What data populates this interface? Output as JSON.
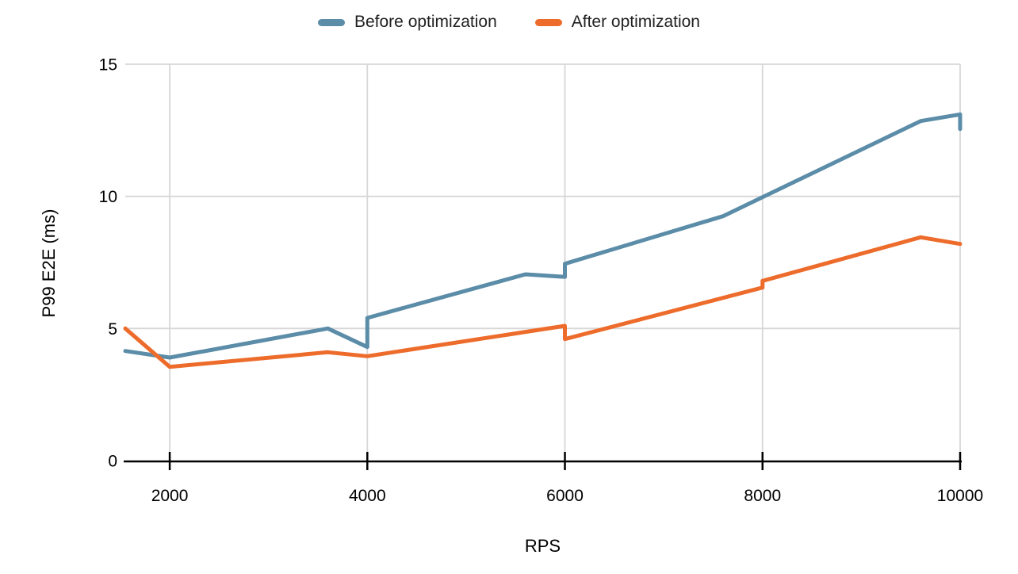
{
  "chart_data": {
    "type": "line",
    "title": "",
    "xlabel": "RPS",
    "ylabel": "P99 E2E (ms)",
    "xlim": [
      1550,
      10000
    ],
    "ylim": [
      0,
      15
    ],
    "x_ticks": [
      2000,
      4000,
      6000,
      8000,
      10000
    ],
    "y_ticks": [
      0,
      5,
      10,
      15
    ],
    "grid": true,
    "legend_position": "top-center",
    "colors": {
      "grid": "#d7d7d7",
      "axis": "#000000",
      "tick_text": "#000000",
      "legend_text": "#212121",
      "background": "#ffffff"
    },
    "series": [
      {
        "name": "Before optimization",
        "color": "#5B8CA8",
        "points": [
          [
            1550,
            4.15
          ],
          [
            2000,
            3.9
          ],
          [
            3600,
            5.0
          ],
          [
            4000,
            4.3
          ],
          [
            4000,
            5.4
          ],
          [
            5600,
            7.05
          ],
          [
            6000,
            6.95
          ],
          [
            6000,
            7.45
          ],
          [
            7600,
            9.25
          ],
          [
            9600,
            12.85
          ],
          [
            10000,
            13.1
          ],
          [
            10000,
            12.55
          ]
        ]
      },
      {
        "name": "After optimization",
        "color": "#ED6C2B",
        "points": [
          [
            1550,
            5.0
          ],
          [
            2000,
            3.55
          ],
          [
            3600,
            4.1
          ],
          [
            4000,
            3.95
          ],
          [
            6000,
            5.1
          ],
          [
            6000,
            4.6
          ],
          [
            8000,
            6.55
          ],
          [
            8000,
            6.8
          ],
          [
            9600,
            8.45
          ],
          [
            10000,
            8.2
          ]
        ]
      }
    ]
  }
}
